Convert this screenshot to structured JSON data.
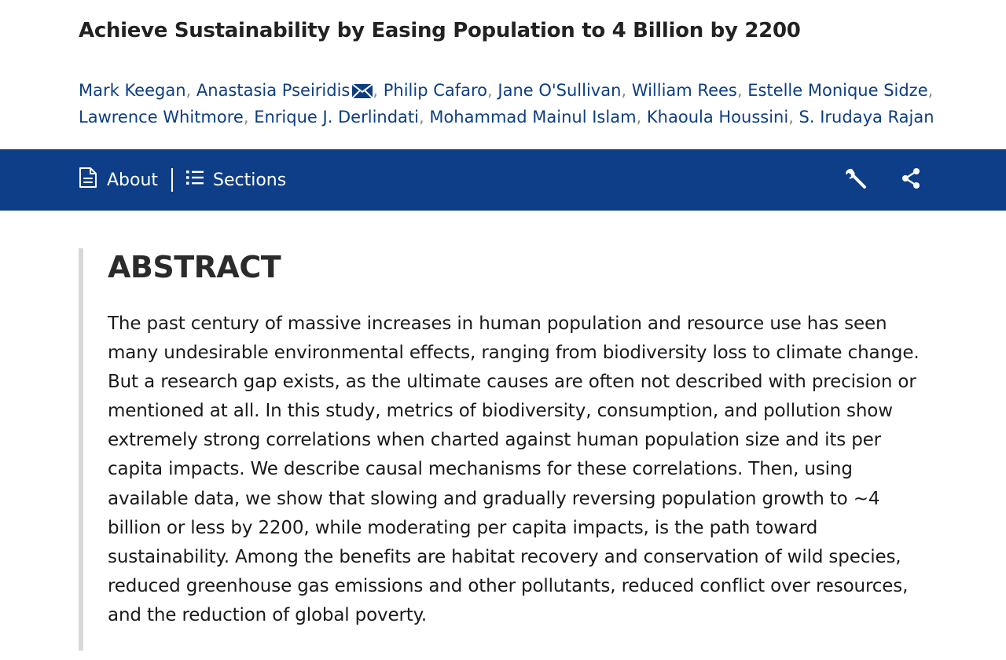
{
  "article": {
    "title": "Achieve Sustainability by Easing Population to 4 Billion by 2200"
  },
  "authors": [
    {
      "name": "Mark Keegan"
    },
    {
      "name": "Anastasia Pseiridis",
      "corresponding": true
    },
    {
      "name": "Philip Cafaro"
    },
    {
      "name": "Jane O'Sullivan"
    },
    {
      "name": "William Rees"
    },
    {
      "name": "Estelle Monique Sidze"
    },
    {
      "name": "Lawrence Whitmore"
    },
    {
      "name": "Enrique J. Derlindati"
    },
    {
      "name": "Mohammad Mainul Islam"
    },
    {
      "name": "Khaoula Houssini"
    },
    {
      "name": "S. Irudaya Rajan"
    }
  ],
  "author_separator": ", ",
  "toolbar": {
    "about_label": "About",
    "about_icon": "document-icon",
    "sections_label": "Sections",
    "sections_icon": "list-icon",
    "tools_icon": "wrench-icon",
    "share_icon": "share-icon",
    "background_color": "#0d3e87"
  },
  "abstract": {
    "heading": "ABSTRACT",
    "text": "The past century of massive increases in human population and resource use has seen many undesirable environmental effects, ranging from biodiversity loss to climate change. But a research gap exists, as the ultimate causes are often not described with precision or mentioned at all. In this study, metrics of biodiversity, consumption, and pollution show extremely strong correlations when charted against human population size and its per capita impacts. We describe causal mechanisms for these correlations. Then, using available data, we show that slowing and gradually reversing population growth to ~4 billion or less by 2200, while moderating per capita impacts, is the path toward sustainability. Among the benefits are habitat recovery and conservation of wild species, reduced greenhouse gas emissions and other pollutants, reduced conflict over resources, and the reduction of global poverty."
  },
  "colors": {
    "link": "#0d3e82",
    "separator": "#8a8a8a",
    "abstract_bar": "#d8d8d8"
  }
}
